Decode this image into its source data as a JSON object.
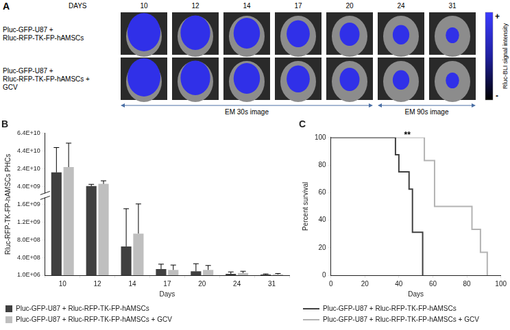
{
  "panel_a": {
    "label": "A",
    "days_title": "DAYS",
    "days": [
      10,
      12,
      14,
      17,
      20,
      24,
      31
    ],
    "rows": [
      [
        "Pluc-GFP-U87 +",
        "Rluc-RFP-TK-FP-hAMSCs"
      ],
      [
        "Pluc-GFP-U87 +",
        "Rluc-RFP-TK-FP-hAMSCs +",
        "GCV"
      ]
    ],
    "exposures": [
      {
        "label": "EM 30s image",
        "first": 10,
        "last": 20
      },
      {
        "label": "EM 90s image",
        "first": 24,
        "last": 31
      }
    ],
    "colorbar": {
      "title": "Rluc-BLI signal intensity",
      "high": "+",
      "low": "-"
    }
  },
  "chart_data": [
    {
      "type": "bar",
      "title": "B",
      "x_label": "Days",
      "y_label": "Rluc-RFP-TK-FP-hAMSCs PHCs",
      "categories": [
        "10",
        "12",
        "14",
        "17",
        "20",
        "24",
        "31"
      ],
      "series": [
        {
          "name": "Pluc-GFP-U87 + Rluc-RFP-TK-FP-hAMSCs",
          "color": "#404040",
          "values": [
            20000000000,
            4500000000,
            650000000,
            140000000,
            90000000,
            30000000,
            15000000
          ],
          "errors": [
            28000000000,
            2000000000,
            850000000,
            110000000,
            170000000,
            45000000,
            15000000
          ]
        },
        {
          "name": "Pluc-GFP-U87 + Rluc-RFP-TK-FP-hAMSCs + GCV",
          "color": "#bfbfbf",
          "values": [
            26000000000,
            7000000000,
            940000000,
            120000000,
            120000000,
            50000000,
            20000000
          ],
          "errors": [
            27000000000,
            3500000000,
            710000000,
            110000000,
            100000000,
            40000000,
            20000000
          ]
        }
      ],
      "ylim": [
        1000000,
        64000000000
      ],
      "yticks": [
        {
          "value": 1000000,
          "label": "1.0E+06"
        },
        {
          "value": 400000000,
          "label": "4.0E+08"
        },
        {
          "value": 800000000,
          "label": "8.0E+08"
        },
        {
          "value": 1200000000,
          "label": "1.2E+09"
        },
        {
          "value": 1600000000,
          "label": "1.6E+09"
        },
        {
          "value": 4000000000,
          "label": "4.0E+09"
        },
        {
          "value": 24000000000,
          "label": "2.4E+10"
        },
        {
          "value": 44000000000,
          "label": "4.4E+10"
        },
        {
          "value": 64000000000,
          "label": "6.4E+10"
        }
      ],
      "grid": false,
      "legend": "bottom"
    },
    {
      "type": "line",
      "title": "C",
      "x_label": "Days",
      "y_label": "Percent survival",
      "series": [
        {
          "name": "Pluc-GFP-U87 + Rluc-RFP-TK-FP-hAMSCs",
          "color": "#404040",
          "x": [
            0,
            38,
            40,
            46,
            48,
            54
          ],
          "values": [
            100,
            87.5,
            75,
            62.5,
            31.25,
            0
          ]
        },
        {
          "name": "Pluc-GFP-U87 + Rluc-RFP-TK-FP-hAMSCs + GCV",
          "color": "#b3b3b3",
          "x": [
            0,
            55,
            61,
            83,
            88,
            92
          ],
          "values": [
            100,
            83.3,
            50,
            33.3,
            16.7,
            0
          ]
        }
      ],
      "line_style": "step",
      "xlim": [
        0,
        100
      ],
      "xticks": [
        0,
        20,
        40,
        60,
        80,
        100
      ],
      "ylim": [
        0,
        100
      ],
      "yticks": [
        0,
        20,
        40,
        60,
        80,
        100
      ],
      "grid": false,
      "legend": "bottom",
      "annotations": [
        {
          "text": "**",
          "x": 45,
          "y": 100
        }
      ]
    }
  ]
}
